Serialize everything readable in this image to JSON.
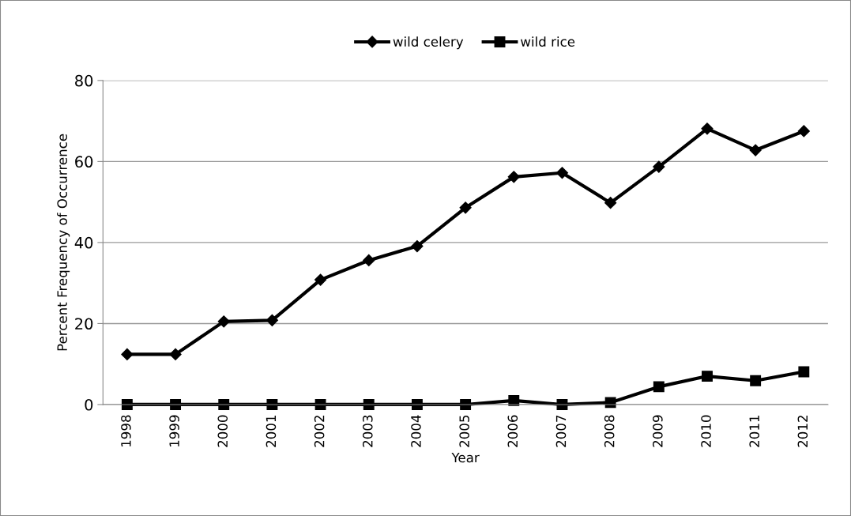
{
  "chart_data": {
    "type": "line",
    "xlabel": "Year",
    "ylabel": "Percent Frequency of Occurrence",
    "categories": [
      "1998",
      "1999",
      "2000",
      "2001",
      "2002",
      "2003",
      "2004",
      "2005",
      "2006",
      "2007",
      "2008",
      "2009",
      "2010",
      "2011",
      "2012"
    ],
    "series": [
      {
        "name": "wild celery",
        "color": "#000000",
        "marker": "diamond",
        "values": [
          12.4,
          12.4,
          20.5,
          20.8,
          30.8,
          35.6,
          39.1,
          48.6,
          56.2,
          57.2,
          49.8,
          58.7,
          68.1,
          62.8,
          67.5
        ]
      },
      {
        "name": "wild rice",
        "color": "#000000",
        "marker": "square",
        "values": [
          0,
          0,
          0,
          0,
          0,
          0,
          0,
          0,
          1.0,
          0,
          0.5,
          4.4,
          7.0,
          5.9,
          8.1
        ]
      }
    ],
    "ylim": [
      0,
      80
    ],
    "yticks": [
      0,
      20,
      40,
      60,
      80
    ],
    "grid": "y",
    "legend": "top",
    "line_style": "solid"
  }
}
